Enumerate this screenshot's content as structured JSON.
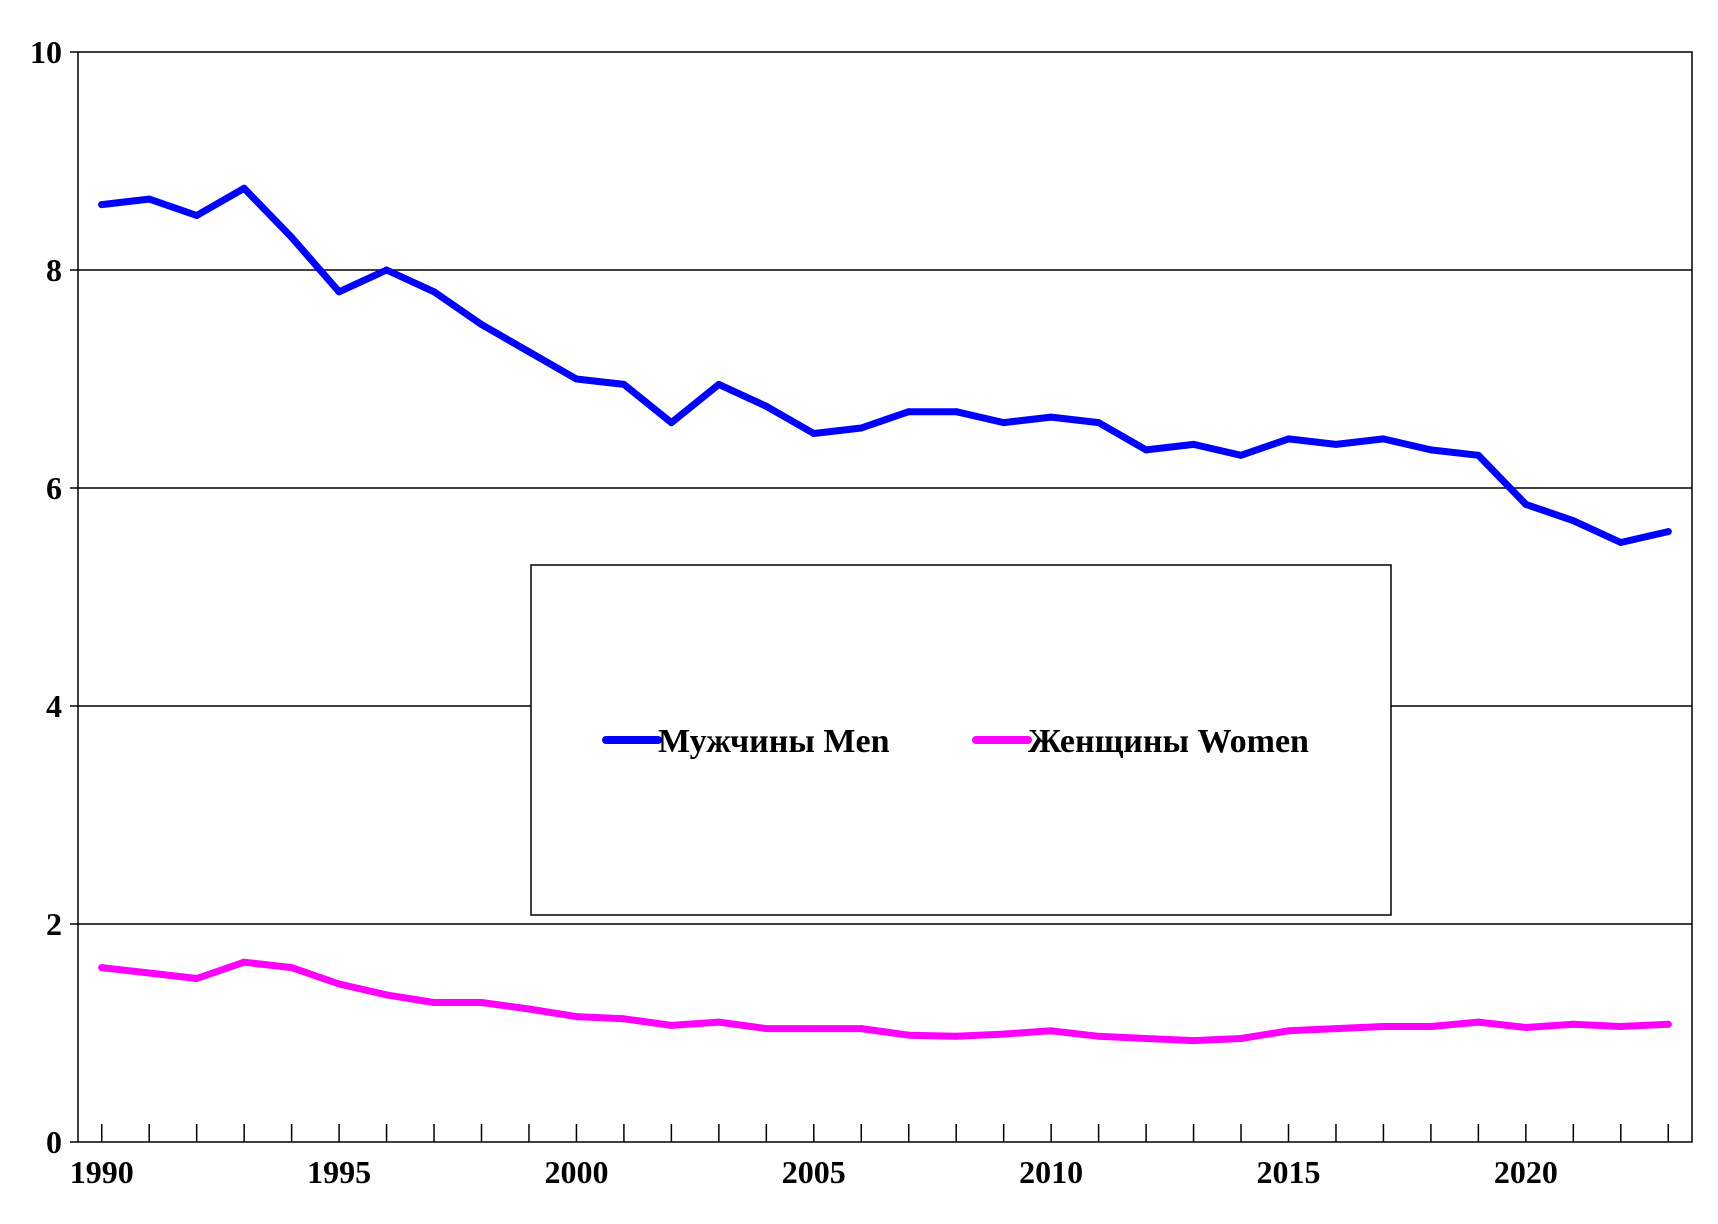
{
  "chart_data": {
    "type": "line",
    "title": "",
    "xlabel": "",
    "ylabel": "",
    "x": [
      1990,
      1991,
      1992,
      1993,
      1994,
      1995,
      1996,
      1997,
      1998,
      1999,
      2000,
      2001,
      2002,
      2003,
      2004,
      2005,
      2006,
      2007,
      2008,
      2009,
      2010,
      2011,
      2012,
      2013,
      2014,
      2015,
      2016,
      2017,
      2018,
      2019,
      2020,
      2021,
      2022,
      2023
    ],
    "xlim": [
      1989.5,
      2023.5
    ],
    "ylim": [
      0,
      10
    ],
    "x_tick_labels": [
      "1990",
      "1995",
      "2000",
      "2005",
      "2010",
      "2015",
      "2020"
    ],
    "y_tick_labels": [
      "0",
      "2",
      "4",
      "6",
      "8",
      "10"
    ],
    "grid": "horizontal",
    "legend_position": "center",
    "series": [
      {
        "name": "Мужчины Men",
        "color": "#0000ff",
        "values": [
          8.6,
          8.65,
          8.5,
          8.75,
          8.3,
          7.8,
          8.0,
          7.8,
          7.5,
          7.25,
          7.0,
          6.95,
          6.6,
          6.95,
          6.75,
          6.5,
          6.55,
          6.7,
          6.7,
          6.6,
          6.65,
          6.6,
          6.35,
          6.4,
          6.3,
          6.45,
          6.4,
          6.45,
          6.35,
          6.3,
          5.85,
          5.7,
          5.5,
          5.6
        ]
      },
      {
        "name": "Женщины Women",
        "color": "#ff00ff",
        "values": [
          1.6,
          1.55,
          1.5,
          1.65,
          1.6,
          1.45,
          1.35,
          1.28,
          1.28,
          1.22,
          1.15,
          1.13,
          1.07,
          1.1,
          1.04,
          1.04,
          1.04,
          0.98,
          0.97,
          0.99,
          1.02,
          0.97,
          0.95,
          0.93,
          0.95,
          1.02,
          1.04,
          1.06,
          1.06,
          1.1,
          1.05,
          1.08,
          1.06,
          1.08
        ]
      }
    ]
  }
}
